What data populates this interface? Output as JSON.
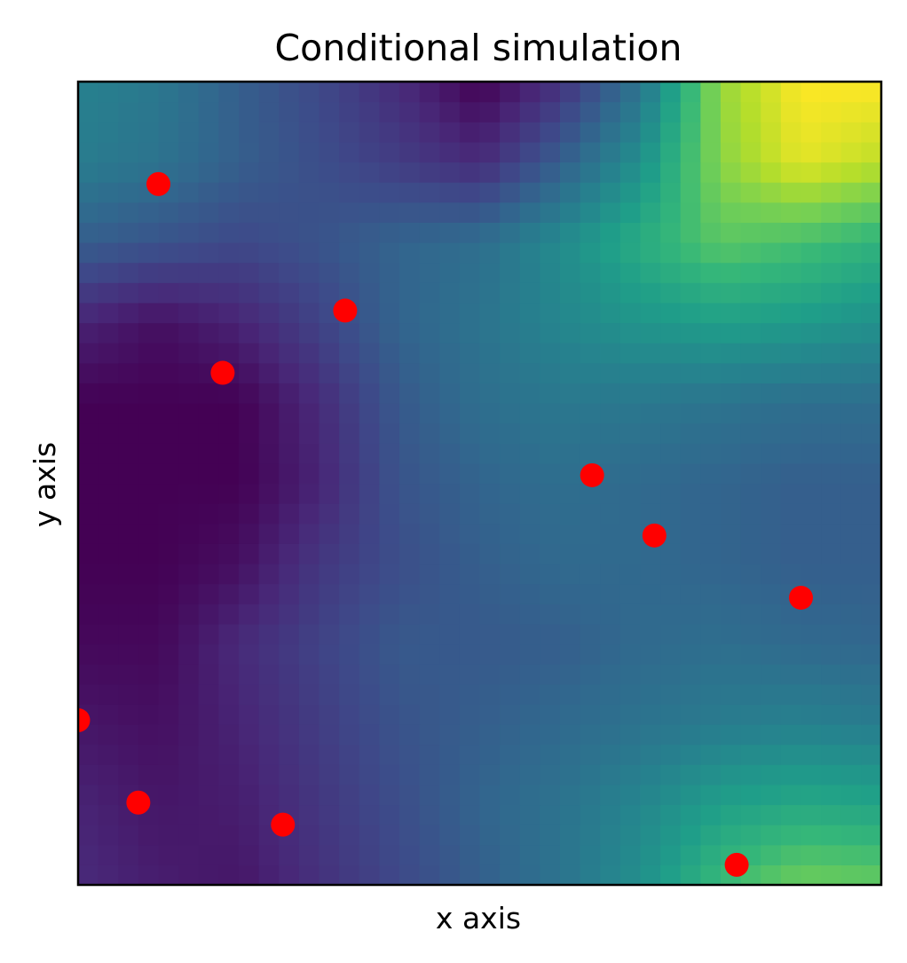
{
  "chart_data": {
    "type": "heatmap",
    "title": "Conditional simulation",
    "xlabel": "x axis",
    "ylabel": "y axis",
    "xlim": [
      0,
      40
    ],
    "ylim": [
      0,
      40
    ],
    "grid": false,
    "legend": "none",
    "xticks": [],
    "yticks": [],
    "colormap": "viridis",
    "colormap_stops": [
      "#440154",
      "#482878",
      "#3e4989",
      "#31688e",
      "#26828e",
      "#1f9e89",
      "#35b779",
      "#6ece58",
      "#b5de2b",
      "#fde725"
    ],
    "field_anchors": {
      "description_x": [
        0,
        4,
        8,
        12,
        16,
        20,
        24,
        28,
        32,
        36,
        40
      ],
      "description_y": [
        0,
        4,
        8,
        12,
        16,
        20,
        24,
        28,
        32,
        36,
        40
      ],
      "values": [
        [
          0.12,
          0.08,
          0.06,
          0.14,
          0.22,
          0.3,
          0.38,
          0.5,
          0.68,
          0.78,
          0.76
        ],
        [
          0.1,
          0.06,
          0.08,
          0.16,
          0.24,
          0.32,
          0.38,
          0.46,
          0.56,
          0.6,
          0.58
        ],
        [
          0.06,
          0.04,
          0.1,
          0.18,
          0.26,
          0.3,
          0.34,
          0.38,
          0.42,
          0.44,
          0.42
        ],
        [
          0.02,
          0.02,
          0.12,
          0.2,
          0.28,
          0.28,
          0.3,
          0.34,
          0.36,
          0.34,
          0.33
        ],
        [
          0.0,
          0.0,
          0.04,
          0.16,
          0.24,
          0.3,
          0.34,
          0.34,
          0.32,
          0.3,
          0.3
        ],
        [
          0.0,
          0.0,
          0.0,
          0.1,
          0.26,
          0.32,
          0.36,
          0.34,
          0.32,
          0.3,
          0.3
        ],
        [
          0.0,
          0.0,
          0.0,
          0.12,
          0.28,
          0.36,
          0.4,
          0.4,
          0.38,
          0.36,
          0.36
        ],
        [
          0.1,
          0.04,
          0.1,
          0.2,
          0.32,
          0.38,
          0.46,
          0.52,
          0.56,
          0.54,
          0.5
        ],
        [
          0.3,
          0.26,
          0.22,
          0.26,
          0.32,
          0.36,
          0.48,
          0.62,
          0.74,
          0.7,
          0.64
        ],
        [
          0.42,
          0.38,
          0.3,
          0.24,
          0.18,
          0.12,
          0.3,
          0.5,
          0.82,
          0.96,
          0.9
        ],
        [
          0.44,
          0.4,
          0.3,
          0.22,
          0.12,
          0.0,
          0.14,
          0.38,
          0.84,
          1.0,
          1.0
        ]
      ]
    },
    "grid_size": 40,
    "points": {
      "color": "#ff0000",
      "x": [
        0.0,
        3.0,
        4.0,
        7.2,
        10.2,
        13.3,
        25.6,
        28.7,
        32.8,
        36.0
      ],
      "y": [
        8.2,
        4.1,
        34.9,
        25.5,
        3.0,
        28.6,
        20.4,
        17.4,
        1.0,
        14.3
      ]
    }
  }
}
